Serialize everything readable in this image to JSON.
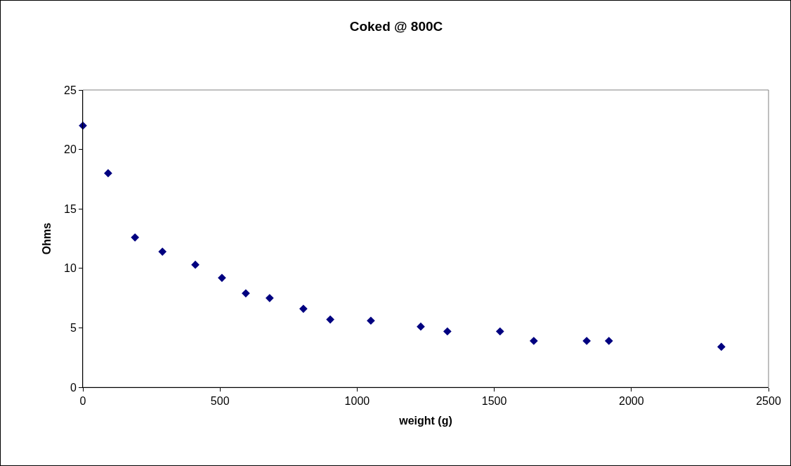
{
  "chart_data": {
    "type": "scatter",
    "title": "Coked @ 800C",
    "xlabel": "weight (g)",
    "ylabel": "Ohms",
    "x": [
      0,
      92,
      190,
      290,
      410,
      507,
      594,
      681,
      804,
      902,
      1050,
      1232,
      1329,
      1521,
      1644,
      1837,
      1918,
      2328
    ],
    "values": [
      22,
      18,
      12.6,
      11.4,
      10.3,
      9.2,
      7.9,
      7.5,
      6.6,
      5.7,
      5.6,
      5.1,
      4.7,
      4.7,
      3.9,
      3.9,
      3.9,
      3.4
    ],
    "color": "#000080",
    "marker": "diamond",
    "xlim": [
      0,
      2500
    ],
    "xticks": [
      0,
      500,
      1000,
      1500,
      2000,
      2500
    ],
    "ylim": [
      0,
      25
    ],
    "yticks": [
      0,
      5,
      10,
      15,
      20,
      25
    ]
  }
}
